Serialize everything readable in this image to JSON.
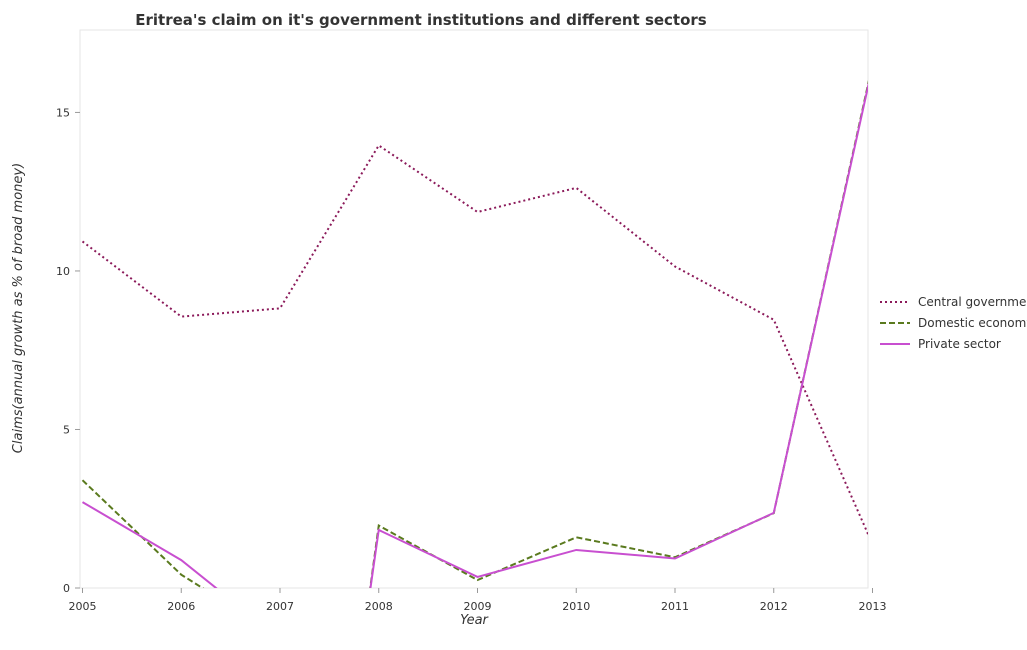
{
  "chart_data": {
    "type": "line",
    "title": "Eritrea's claim on it's government institutions and different sectors",
    "xlabel": "Year",
    "ylabel": "Claims(annual growth as % of broad money)",
    "categories": [
      "2005",
      "2006",
      "2007",
      "2008",
      "2009",
      "2010",
      "2011",
      "2012",
      "2013"
    ],
    "ylim": [
      0,
      17.6
    ],
    "yticks": [
      0,
      5,
      10,
      15
    ],
    "legend_position": "right",
    "grid": false,
    "series": [
      {
        "name": "Central government",
        "color": "#8b1a5a",
        "dash": "dotted",
        "values": [
          10.93,
          8.56,
          8.82,
          13.96,
          11.86,
          12.62,
          10.14,
          8.46,
          1.38
        ]
      },
      {
        "name": "Domestic economy",
        "color": "#5a7a1e",
        "dash": "dashed",
        "values": [
          3.4,
          0.42,
          null,
          1.97,
          0.25,
          1.6,
          0.97,
          2.36,
          16.52
        ]
      },
      {
        "name": "Private sector",
        "color": "#c84fd0",
        "dash": "solid",
        "values": [
          2.71,
          0.88,
          null,
          1.83,
          0.35,
          1.2,
          0.93,
          2.37,
          16.45
        ]
      }
    ]
  }
}
